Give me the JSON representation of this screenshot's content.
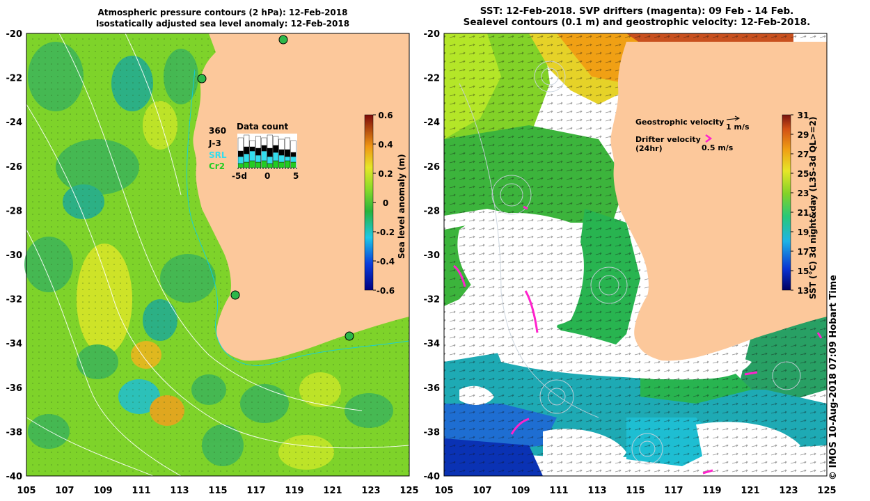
{
  "left_panel": {
    "title_line1": "Atmospheric pressure contours (2 hPa): 12-Feb-2018",
    "title_line2": "Isostatically adjusted sea level anomaly: 12-Feb-2018",
    "colorbar_label": "Sea level anomaly (m)",
    "colorbar_ticks": [
      "0.6",
      "0.4",
      "0.2",
      "0",
      "-0.2",
      "-0.4",
      "-0.6"
    ],
    "data_count": {
      "title": "Data count",
      "count": "360",
      "series": [
        "J-3",
        "SRL",
        "Cr2"
      ],
      "series_colors": [
        "#000000",
        "#33ddee",
        "#22cc22"
      ],
      "axis_ticks": [
        "-5d",
        "0",
        "5"
      ]
    }
  },
  "right_panel": {
    "title_line1": "SST: 12-Feb-2018. SVP drifters (magenta): 09 Feb - 14 Feb.",
    "title_line2": "Sealevel contours (0.1 m) and geostrophic velocity: 12-Feb-2018.",
    "colorbar_label": "SST (°C) 3d night&day (L3S-3d QL>=2)",
    "colorbar_ticks": [
      "31",
      "29",
      "27",
      "25",
      "23",
      "21",
      "19",
      "17",
      "15",
      "13"
    ],
    "legend": {
      "geo_label": "Geostrophic velocity",
      "geo_scale": "1 m/s",
      "drifter_label": "Drifter velocity",
      "drifter_sub": "(24hr)",
      "drifter_scale": "0.5 m/s"
    }
  },
  "axes": {
    "lat_ticks": [
      "-20",
      "-22",
      "-24",
      "-26",
      "-28",
      "-30",
      "-32",
      "-34",
      "-36",
      "-38",
      "-40"
    ],
    "lon_ticks": [
      "105",
      "107",
      "109",
      "111",
      "113",
      "115",
      "117",
      "119",
      "121",
      "123",
      "125"
    ]
  },
  "credit": "© IMOS 10-Aug-2018 07:09 Hobart Time",
  "colors": {
    "land": "#fcc89b",
    "ocean_green": "#7ed32a",
    "drifter": "#ff22cc"
  }
}
